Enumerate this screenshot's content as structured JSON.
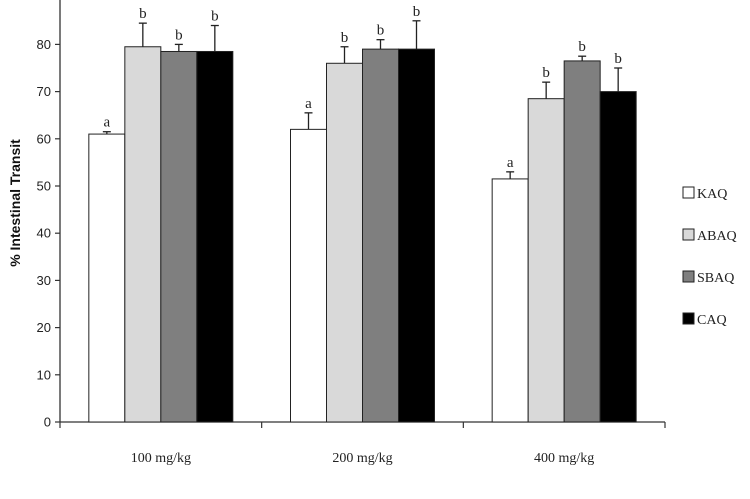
{
  "chart_data": {
    "type": "bar",
    "ylabel": "% Intestinal Transit",
    "xlabel": "",
    "ylim": [
      0,
      90
    ],
    "yticks": [
      0,
      10,
      20,
      30,
      40,
      50,
      60,
      70,
      80
    ],
    "categories": [
      "100 mg/kg",
      "200 mg/kg",
      "400 mg/kg"
    ],
    "series": [
      {
        "name": "KAQ",
        "color": "#ffffff",
        "values": [
          61,
          62,
          51.5
        ],
        "errors": [
          0.5,
          3.5,
          1.5
        ],
        "letters": [
          "a",
          "a",
          "a"
        ]
      },
      {
        "name": "ABAQ",
        "color": "#d9d9d9",
        "values": [
          79.5,
          76,
          68.5
        ],
        "errors": [
          5,
          3.5,
          3.5
        ],
        "letters": [
          "b",
          "b",
          "b"
        ]
      },
      {
        "name": "SBAQ",
        "color": "#7f7f7f",
        "values": [
          78.5,
          79,
          76.5
        ],
        "errors": [
          1.5,
          2,
          1
        ],
        "letters": [
          "b",
          "b",
          "b"
        ]
      },
      {
        "name": "CAQ",
        "color": "#000000",
        "values": [
          78.5,
          79,
          70
        ],
        "errors": [
          5.5,
          6,
          5
        ],
        "letters": [
          "b",
          "b",
          "b"
        ]
      }
    ],
    "legend_position": "right",
    "grid": false
  }
}
